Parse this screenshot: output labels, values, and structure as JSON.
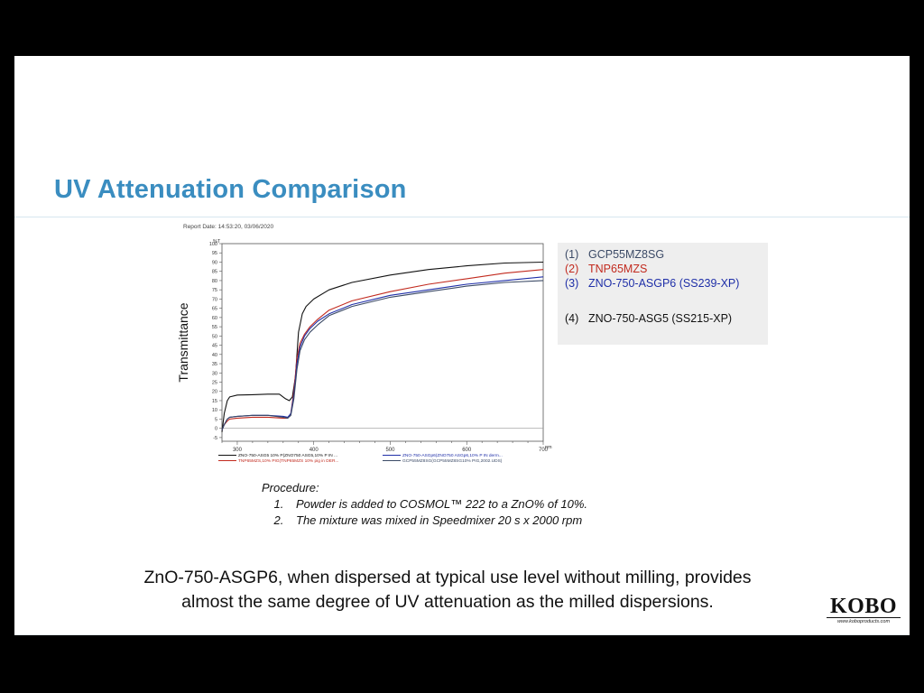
{
  "slide": {
    "title": "UV Attenuation Comparison",
    "report_date": "Report Date: 14:53:20, 03/06/2020",
    "legend": [
      {
        "num": "(1)",
        "label": "GCP55MZ8SG",
        "color": "#3b4a66"
      },
      {
        "num": "(2)",
        "label": "TNP65MZS",
        "color": "#c22a1e"
      },
      {
        "num": "(3)",
        "label": "ZNO-750-ASGP6 (SS239-XP)",
        "color": "#1f2fa8"
      },
      {
        "num": "(4)",
        "label": "ZNO-750-ASG5 (SS215-XP)",
        "color": "#111111"
      }
    ],
    "procedure": {
      "heading": "Procedure:",
      "steps": [
        "Powder is added to COSMOL™ 222 to a ZnO% of 10%.",
        "The mixture was mixed in Speedmixer 20 s x 2000 rpm"
      ]
    },
    "conclusion": [
      "ZnO-750-ASGP6, when dispersed at typical use level without milling, provides",
      "almost the same degree of UV attenuation as the milled dispersions."
    ],
    "logo": {
      "word": "KOBO",
      "url": "www.koboproducts.com"
    }
  },
  "chart_data": {
    "type": "line",
    "ylabel": "Transmittance",
    "yunit": "%T",
    "xunit": "nm",
    "xlim": [
      280,
      700
    ],
    "ylim": [
      -7,
      100
    ],
    "x_ticks": [
      300,
      400,
      500,
      600,
      700
    ],
    "y_ticks": [
      -5,
      0,
      5,
      10,
      15,
      20,
      25,
      30,
      35,
      40,
      45,
      50,
      55,
      60,
      65,
      70,
      75,
      80,
      85,
      90,
      95,
      100
    ],
    "bottom_legend": {
      "left": [
        {
          "label": "ZNO-750-ASG5 10% P(ZNO750 ASG5,10% P IN ...",
          "color": "#111111"
        },
        {
          "label": "TNP65MZS,10% PIG(TNP65MZS 10% pig in DER...",
          "color": "#c22a1e"
        }
      ],
      "right": [
        {
          "label": "ZNO-750-ASGp6(ZNO750 ASGp6,10% P IN derm...",
          "color": "#1f2fa8"
        },
        {
          "label": "GCP55MZ8SG(GCP55MZ8SG10% PIG,2002.UDS)",
          "color": "#3b4a66"
        }
      ]
    },
    "series": [
      {
        "name": "ZNO-750-ASG5 10% P(ZNO750 ASG5,10% P IN ...",
        "color": "#111111",
        "x": [
          280,
          283,
          287,
          290,
          300,
          320,
          340,
          355,
          363,
          368,
          372,
          376,
          380,
          385,
          390,
          400,
          420,
          450,
          500,
          550,
          600,
          650,
          700
        ],
        "y": [
          -2,
          8,
          15,
          17,
          18,
          18.2,
          18.5,
          18.5,
          16,
          15,
          17,
          28,
          52,
          62,
          66,
          70,
          75,
          79,
          83,
          86,
          88,
          89.5,
          90
        ]
      },
      {
        "name": "TNP65MZS,10% PIG(TNP65MZS 10% pig in DER...",
        "color": "#c22a1e",
        "x": [
          280,
          283,
          287,
          290,
          300,
          320,
          340,
          360,
          366,
          370,
          374,
          378,
          382,
          388,
          395,
          405,
          420,
          450,
          500,
          550,
          600,
          650,
          700
        ],
        "y": [
          -1,
          2,
          4,
          5,
          5.5,
          6,
          6,
          5.5,
          5.5,
          8,
          20,
          38,
          46,
          51,
          55,
          59,
          64,
          69,
          74,
          78,
          81,
          84,
          86
        ]
      },
      {
        "name": "ZNO-750-ASGp6(ZNO750 ASGp6,10% P IN derm...",
        "color": "#1f2fa8",
        "x": [
          280,
          283,
          287,
          290,
          300,
          320,
          340,
          360,
          366,
          370,
          374,
          378,
          382,
          388,
          395,
          405,
          420,
          450,
          500,
          550,
          600,
          650,
          700
        ],
        "y": [
          -1,
          2,
          5,
          6,
          6.5,
          7,
          7,
          6.5,
          6,
          8,
          18,
          35,
          44,
          50,
          54,
          58,
          62,
          67,
          72,
          75,
          78,
          80,
          82
        ]
      },
      {
        "name": "GCP55MZ8SG(GCP55MZ8SG10% PIG,2002.UDS)",
        "color": "#3b4a66",
        "x": [
          280,
          283,
          287,
          290,
          300,
          320,
          340,
          360,
          366,
          370,
          374,
          378,
          382,
          388,
          395,
          405,
          420,
          450,
          500,
          550,
          600,
          650,
          700
        ],
        "y": [
          -1,
          2,
          5,
          6,
          6.5,
          7,
          7,
          6,
          5.5,
          7,
          16,
          32,
          42,
          48,
          52,
          56,
          61,
          66,
          71,
          74,
          77,
          79,
          80
        ]
      }
    ]
  }
}
